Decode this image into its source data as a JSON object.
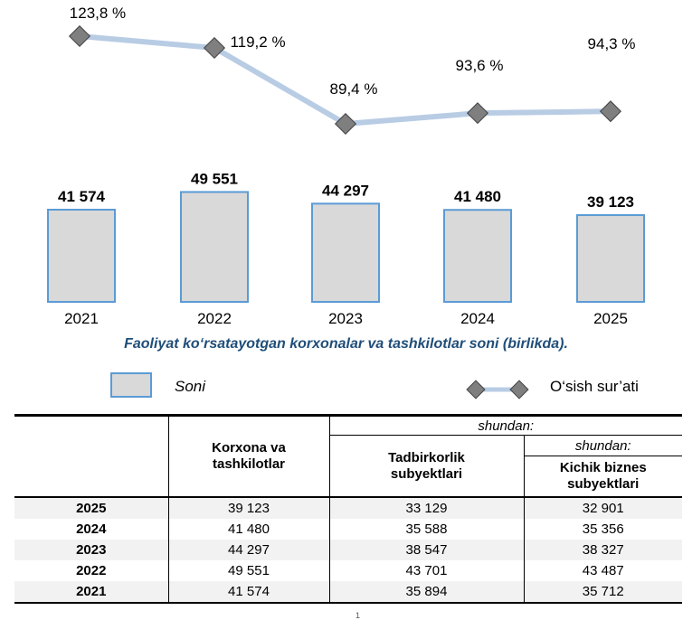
{
  "chart_data": {
    "type": "bar+line",
    "categories": [
      "2021",
      "2022",
      "2023",
      "2024",
      "2025"
    ],
    "series": [
      {
        "name": "Soni",
        "type": "bar",
        "values": [
          41574,
          49551,
          44297,
          41480,
          39123
        ],
        "labels": [
          "41 574",
          "49 551",
          "44 297",
          "41 480",
          "39 123"
        ],
        "color": "#d9d9d9",
        "border": "#5b9bd5"
      },
      {
        "name": "O‘sish sur’ati",
        "type": "line",
        "values": [
          123.8,
          119.2,
          89.4,
          93.6,
          94.3
        ],
        "labels": [
          "123,8 %",
          "119,2 %",
          "89,4 %",
          "93,6 %",
          "94,3 %"
        ],
        "color": "#b8cce4",
        "marker": "#7f7f7f"
      }
    ],
    "title": "Faoliyat ko‘rsatayotgan korxonalar va tashkilotlar soni (birlikda).",
    "legend": "bottom"
  },
  "caption": "Faoliyat ko‘rsatayotgan korxonalar va tashkilotlar soni (birlikda).",
  "legend": {
    "bar_label": "Soni",
    "line_label": "O‘sish sur’ati"
  },
  "table": {
    "headers": {
      "col1": "Korxona va tashkilotlar",
      "shundan1": "shundan:",
      "col2": "Tadbirkorlik subyektlari",
      "shundan2": "shundan:",
      "col3": "Kichik biznes subyektlari"
    },
    "rows": [
      {
        "year": "2025",
        "c1": "39 123",
        "c2": "33 129",
        "c3": "32 901"
      },
      {
        "year": "2024",
        "c1": "41 480",
        "c2": "35 588",
        "c3": "35 356"
      },
      {
        "year": "2023",
        "c1": "44 297",
        "c2": "38 547",
        "c3": "38 327"
      },
      {
        "year": "2022",
        "c1": "49 551",
        "c2": "43 701",
        "c3": "43 487"
      },
      {
        "year": "2021",
        "c1": "41 574",
        "c2": "35 894",
        "c3": "35 712"
      }
    ]
  },
  "page_number": "1"
}
